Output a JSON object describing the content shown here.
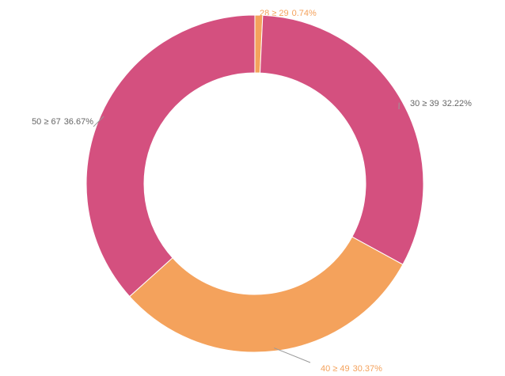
{
  "chart_data": {
    "type": "pie",
    "categories": [
      "28 ≥ 29",
      "30 ≥ 39",
      "40 ≥ 49",
      "50 ≥ 67"
    ],
    "values": [
      0.74,
      32.22,
      30.37,
      36.67
    ],
    "value_labels": [
      "0.74%",
      "32.22%",
      "30.37%",
      "36.67%"
    ],
    "colors": [
      "#f4a25c",
      "#d4507f",
      "#f4a25c",
      "#d4507f"
    ]
  }
}
